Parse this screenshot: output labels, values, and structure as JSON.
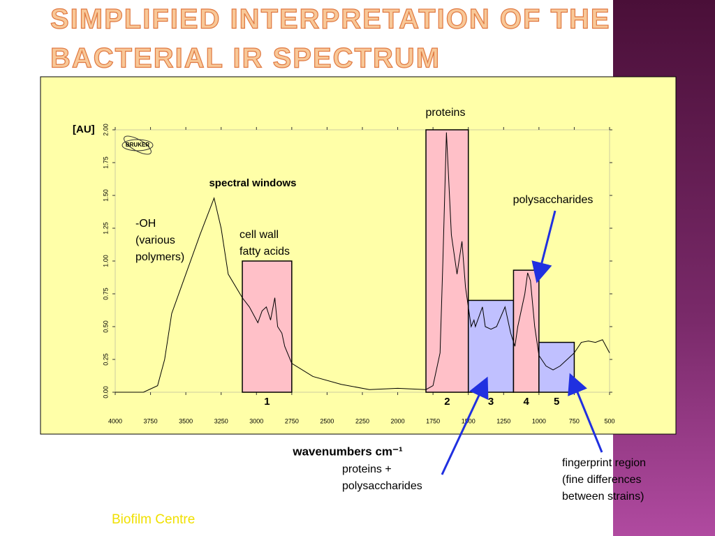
{
  "slide": {
    "title_lines": [
      "SIMPLIFIED INTERPRETATION OF THE",
      "BACTERIAL IR SPECTRUM"
    ],
    "footer": "Biofilm Centre",
    "logo": "BRUKER"
  },
  "chart_data": {
    "type": "line",
    "y_label": "[AU]",
    "x_label": "wavenumbers cm⁻¹",
    "inner_title": "spectral windows",
    "xlim": [
      4000,
      500
    ],
    "ylim": [
      0,
      2
    ],
    "xticks": [
      4000,
      3750,
      3500,
      3250,
      3000,
      2750,
      2500,
      2250,
      2000,
      1750,
      1500,
      1250,
      1000,
      750,
      500
    ],
    "yticks": [
      {
        "value": 0,
        "label": "0.00"
      },
      {
        "value": 0.25,
        "label": "0.25"
      },
      {
        "value": 0.5,
        "label": "0.50"
      },
      {
        "value": 0.75,
        "label": "0.75"
      },
      {
        "value": 1,
        "label": "1.00"
      },
      {
        "value": 1.25,
        "label": "1.25"
      },
      {
        "value": 1.5,
        "label": "1.50"
      },
      {
        "value": 1.75,
        "label": "1.75"
      },
      {
        "value": 2,
        "label": "2.00"
      }
    ],
    "series": [
      {
        "color": "#000000",
        "x": [
          4000,
          3800,
          3700,
          3650,
          3600,
          3500,
          3400,
          3300,
          3250,
          3200,
          3100,
          3050,
          2990,
          2960,
          2930,
          2900,
          2870,
          2850,
          2820,
          2800,
          2750,
          2600,
          2400,
          2200,
          2000,
          1800,
          1750,
          1700,
          1680,
          1655,
          1620,
          1580,
          1545,
          1520,
          1480,
          1460,
          1450,
          1400,
          1380,
          1340,
          1300,
          1240,
          1200,
          1170,
          1150,
          1100,
          1080,
          1060,
          1030,
          1000,
          950,
          900,
          850,
          800,
          750,
          700,
          650,
          600,
          550,
          500
        ],
        "values": [
          0,
          0,
          0.05,
          0.25,
          0.6,
          0.9,
          1.2,
          1.48,
          1.25,
          0.9,
          0.72,
          0.65,
          0.53,
          0.62,
          0.65,
          0.55,
          0.72,
          0.5,
          0.45,
          0.35,
          0.22,
          0.12,
          0.06,
          0.02,
          0.03,
          0.02,
          0.05,
          0.3,
          1.0,
          1.98,
          1.2,
          0.9,
          1.15,
          0.8,
          0.5,
          0.55,
          0.5,
          0.65,
          0.5,
          0.48,
          0.5,
          0.65,
          0.45,
          0.35,
          0.5,
          0.75,
          0.91,
          0.85,
          0.5,
          0.28,
          0.2,
          0.17,
          0.2,
          0.25,
          0.3,
          0.38,
          0.39,
          0.38,
          0.4,
          0.3
        ]
      }
    ],
    "windows": [
      {
        "label": "1",
        "x": [
          3100,
          2750
        ],
        "height": 1.0,
        "color": "#ffc0c8"
      },
      {
        "label": "2",
        "x": [
          1800,
          1500
        ],
        "height": 2.0,
        "color": "#ffc0c8"
      },
      {
        "label": "3",
        "x": [
          1500,
          1180
        ],
        "height": 0.7,
        "color": "#c0c0ff"
      },
      {
        "label": "4",
        "x": [
          1180,
          1000
        ],
        "height": 0.93,
        "color": "#ffc0c8"
      },
      {
        "label": "5",
        "x": [
          1000,
          750
        ],
        "height": 0.38,
        "color": "#c0c0ff"
      }
    ],
    "annotations": {
      "oh": [
        "-OH",
        "(various",
        "polymers)"
      ],
      "cellwall": [
        "cell wall",
        "fatty acids"
      ],
      "proteins": "proteins",
      "polysaccharides": "polysaccharides",
      "protpoly": [
        "proteins +",
        "polysaccharides"
      ],
      "fingerprint": [
        "fingerprint region",
        "(fine differences",
        "between strains)"
      ]
    }
  }
}
